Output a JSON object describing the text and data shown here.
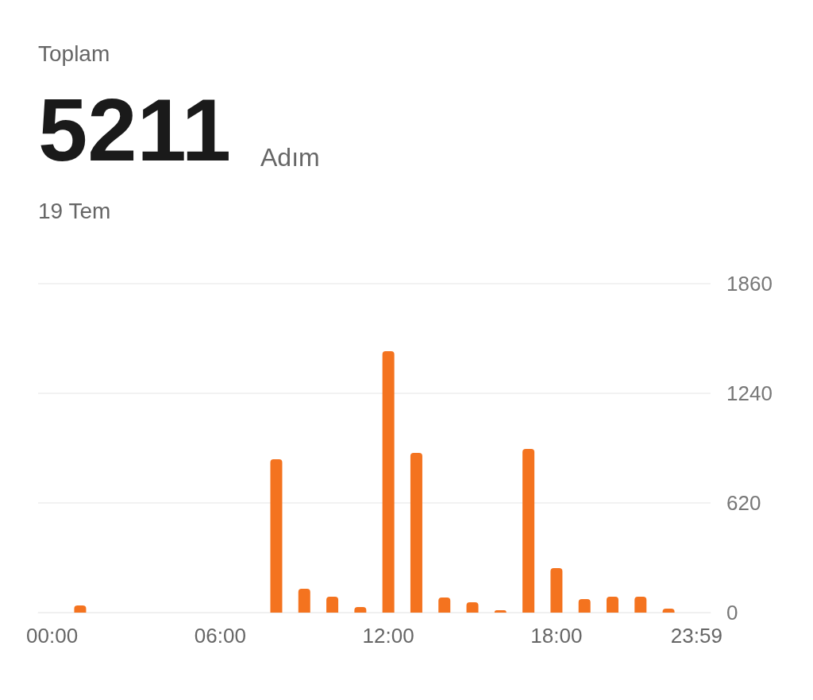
{
  "chart_data": {
    "type": "bar",
    "title": "Toplam",
    "subtitle": "19 Tem",
    "annotations": [
      "5211",
      "Adım"
    ],
    "categories": [
      "00:00",
      null,
      null,
      null,
      null,
      null,
      "06:00",
      null,
      null,
      null,
      null,
      null,
      "12:00",
      null,
      null,
      null,
      null,
      null,
      "18:00",
      null,
      null,
      null,
      null,
      "23:59"
    ],
    "values": [
      0,
      40,
      0,
      0,
      0,
      0,
      0,
      0,
      867,
      135,
      90,
      31,
      1478,
      903,
      85,
      58,
      13,
      925,
      252,
      76,
      90,
      90,
      22,
      0
    ],
    "color": "#f4731f",
    "ylim": [
      0,
      1860
    ],
    "yticks": [
      0,
      620,
      1240,
      1860
    ],
    "grid": "y"
  }
}
